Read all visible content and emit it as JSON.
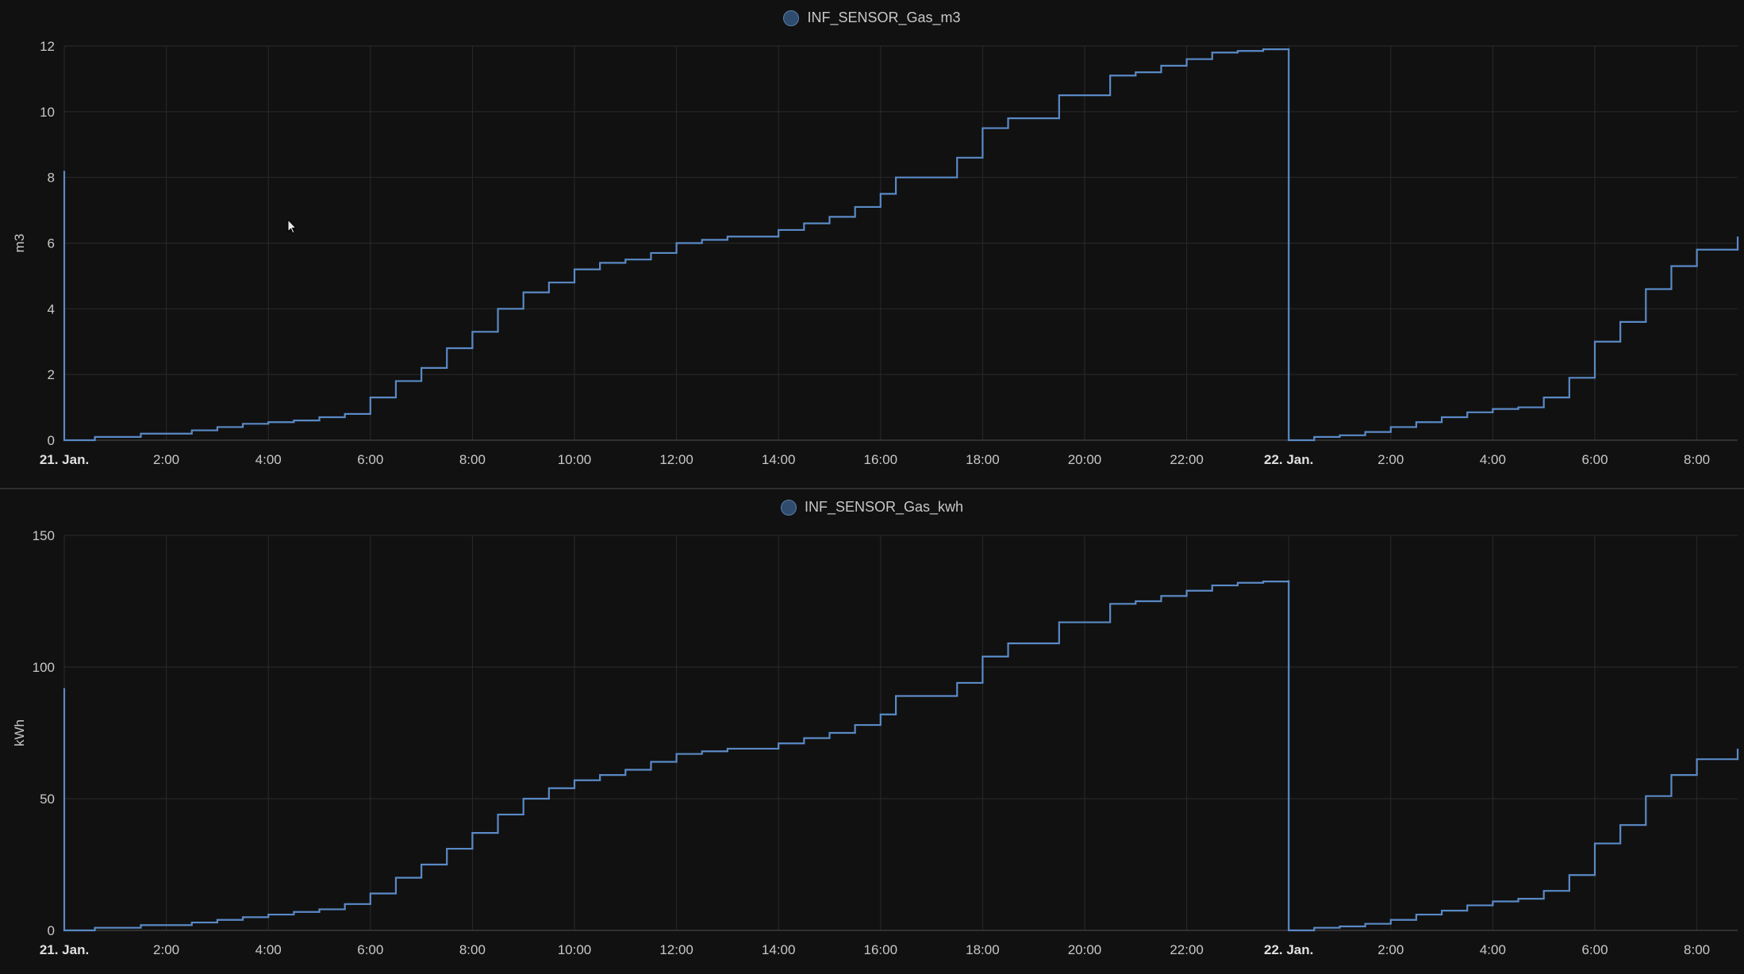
{
  "colors": {
    "background": "#111111",
    "grid": "#2a2a2a",
    "axis_text": "#c8c8c8",
    "series": "#5a8ac6"
  },
  "chart_data": [
    {
      "type": "line",
      "legend_placement": "top-center",
      "grid": true,
      "ylabel": "m3",
      "ylim": [
        0,
        12
      ],
      "yticks": [
        "0",
        "2",
        "4",
        "6",
        "8",
        "10",
        "12"
      ],
      "xticks": [
        "21. Jan.",
        "2:00",
        "4:00",
        "6:00",
        "8:00",
        "10:00",
        "12:00",
        "14:00",
        "16:00",
        "18:00",
        "20:00",
        "22:00",
        "22. Jan.",
        "2:00",
        "4:00",
        "6:00",
        "8:00"
      ],
      "x_unit": "hours since 21. Jan. 0:00",
      "series": [
        {
          "name": "INF_SENSOR_Gas_m3",
          "style": "step",
          "x": [
            0,
            0,
            0.01,
            0.6,
            1.0,
            1.5,
            2.0,
            2.5,
            3.0,
            3.5,
            4.0,
            4.5,
            5.0,
            5.5,
            6.0,
            6.5,
            7.0,
            7.5,
            8.0,
            8.5,
            9.0,
            9.5,
            10.0,
            10.5,
            11.0,
            11.5,
            12.0,
            12.5,
            13.0,
            13.5,
            14.0,
            14.5,
            15.0,
            15.5,
            16.0,
            16.3,
            17.0,
            17.5,
            18.0,
            18.5,
            19.0,
            19.5,
            20.0,
            20.5,
            21.0,
            21.5,
            22.0,
            22.5,
            23.0,
            23.5,
            24.0,
            24.0,
            24.5,
            25.0,
            25.5,
            26.0,
            26.5,
            27.0,
            27.5,
            28.0,
            28.5,
            29.0,
            29.5,
            30.0,
            30.5,
            31.0,
            31.5,
            32.0,
            32.8
          ],
          "y": [
            8.2,
            0,
            0,
            0.1,
            0.1,
            0.2,
            0.2,
            0.3,
            0.4,
            0.5,
            0.55,
            0.6,
            0.7,
            0.8,
            1.3,
            1.8,
            2.2,
            2.8,
            3.3,
            4.0,
            4.5,
            4.8,
            5.2,
            5.4,
            5.5,
            5.7,
            6.0,
            6.1,
            6.2,
            6.2,
            6.4,
            6.6,
            6.8,
            7.1,
            7.5,
            8.0,
            8.0,
            8.6,
            9.5,
            9.8,
            9.8,
            10.5,
            10.5,
            11.1,
            11.2,
            11.4,
            11.6,
            11.8,
            11.85,
            11.9,
            11.9,
            0,
            0.1,
            0.15,
            0.25,
            0.4,
            0.55,
            0.7,
            0.85,
            0.95,
            1.0,
            1.3,
            1.9,
            3.0,
            3.6,
            4.6,
            5.3,
            5.8,
            6.2
          ]
        }
      ]
    },
    {
      "type": "line",
      "legend_placement": "top-center",
      "grid": true,
      "ylabel": "kWh",
      "ylim": [
        0,
        150
      ],
      "yticks": [
        "0",
        "50",
        "100",
        "150"
      ],
      "xticks": [
        "21. Jan.",
        "2:00",
        "4:00",
        "6:00",
        "8:00",
        "10:00",
        "12:00",
        "14:00",
        "16:00",
        "18:00",
        "20:00",
        "22:00",
        "22. Jan.",
        "2:00",
        "4:00",
        "6:00",
        "8:00"
      ],
      "x_unit": "hours since 21. Jan. 0:00",
      "series": [
        {
          "name": "INF_SENSOR_Gas_kwh",
          "style": "step",
          "x": [
            0,
            0,
            0.01,
            0.6,
            1.0,
            1.5,
            2.0,
            2.5,
            3.0,
            3.5,
            4.0,
            4.5,
            5.0,
            5.5,
            6.0,
            6.5,
            7.0,
            7.5,
            8.0,
            8.5,
            9.0,
            9.5,
            10.0,
            10.5,
            11.0,
            11.5,
            12.0,
            12.5,
            13.0,
            13.5,
            14.0,
            14.5,
            15.0,
            15.5,
            16.0,
            16.3,
            17.0,
            17.5,
            18.0,
            18.5,
            19.0,
            19.5,
            20.0,
            20.5,
            21.0,
            21.5,
            22.0,
            22.5,
            23.0,
            23.5,
            24.0,
            24.0,
            24.5,
            25.0,
            25.5,
            26.0,
            26.5,
            27.0,
            27.5,
            28.0,
            28.5,
            29.0,
            29.5,
            30.0,
            30.5,
            31.0,
            31.5,
            32.0,
            32.8
          ],
          "y": [
            92,
            0,
            0,
            1,
            1,
            2,
            2,
            3,
            4,
            5,
            6,
            7,
            8,
            10,
            14,
            20,
            25,
            31,
            37,
            44,
            50,
            54,
            57,
            59,
            61,
            64,
            67,
            68,
            69,
            69,
            71,
            73,
            75,
            78,
            82,
            89,
            89,
            94,
            104,
            109,
            109,
            117,
            117,
            124,
            125,
            127,
            129,
            131,
            132,
            132.5,
            133,
            0,
            1,
            1.5,
            2.5,
            4,
            6,
            7.5,
            9.5,
            11,
            12,
            15,
            21,
            33,
            40,
            51,
            59,
            65,
            69
          ]
        }
      ]
    }
  ]
}
